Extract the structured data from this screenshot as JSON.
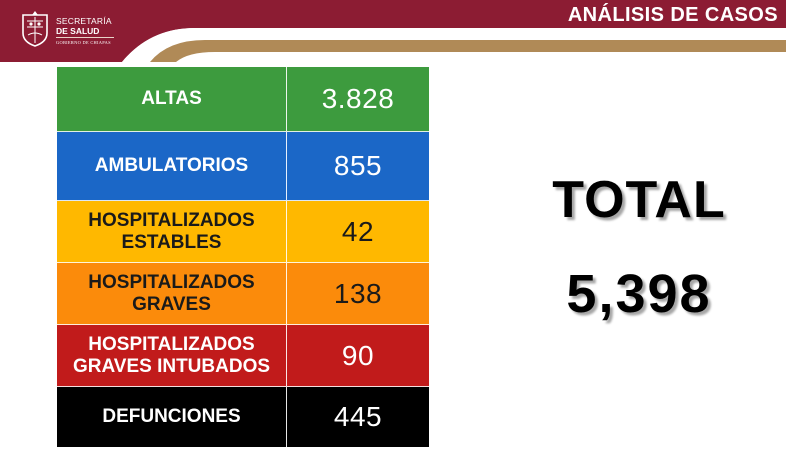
{
  "header": {
    "logo": {
      "org_line1": "SECRETARÍA",
      "org_line2": "DE SALUD",
      "gov_line": "GOBIERNO DE CHIAPAS",
      "seal_icon": "chiapas-seal-icon"
    },
    "title": "ANÁLISIS DE CASOS",
    "colors": {
      "maroon": "#8c1c33",
      "gold": "#b08a57"
    }
  },
  "cases": [
    {
      "label": "ALTAS",
      "value": "3.828",
      "bg": "#3d9b3e",
      "text_color": "#ffffff"
    },
    {
      "label": "AMBULATORIOS",
      "value": "855",
      "bg": "#1b67c7",
      "text_color": "#ffffff"
    },
    {
      "label": "HOSPITALIZADOS ESTABLES",
      "value": "42",
      "bg": "#ffb800",
      "text_color": "#1a1a1a"
    },
    {
      "label": "HOSPITALIZADOS GRAVES",
      "value": "138",
      "bg": "#fb8b0b",
      "text_color": "#1a1a1a"
    },
    {
      "label": "HOSPITALIZADOS GRAVES INTUBADOS",
      "value": "90",
      "bg": "#c11b1b",
      "text_color": "#ffffff"
    },
    {
      "label": "DEFUNCIONES",
      "value": "445",
      "bg": "#000000",
      "text_color": "#ffffff"
    }
  ],
  "total": {
    "label": "TOTAL",
    "value": "5,398"
  }
}
